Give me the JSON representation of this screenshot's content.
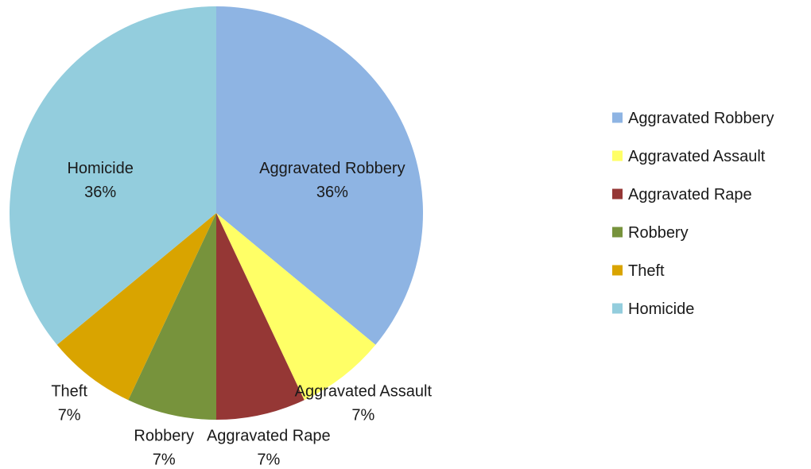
{
  "chart_data": {
    "type": "pie",
    "title": "",
    "legend_position": "right",
    "slices": [
      {
        "label": "Aggravated Robbery",
        "value": 36,
        "percent_label": "36%",
        "color": "#8EB4E3"
      },
      {
        "label": "Aggravated Assault",
        "value": 7,
        "percent_label": "7%",
        "color": "#FFFF66"
      },
      {
        "label": "Aggravated Rape",
        "value": 7,
        "percent_label": "7%",
        "color": "#953735"
      },
      {
        "label": "Robbery",
        "value": 7,
        "percent_label": "7%",
        "color": "#77933C"
      },
      {
        "label": "Theft",
        "value": 7,
        "percent_label": "7%",
        "color": "#D9A400"
      },
      {
        "label": "Homicide",
        "value": 36,
        "percent_label": "36%",
        "color": "#93CDDD"
      }
    ]
  }
}
